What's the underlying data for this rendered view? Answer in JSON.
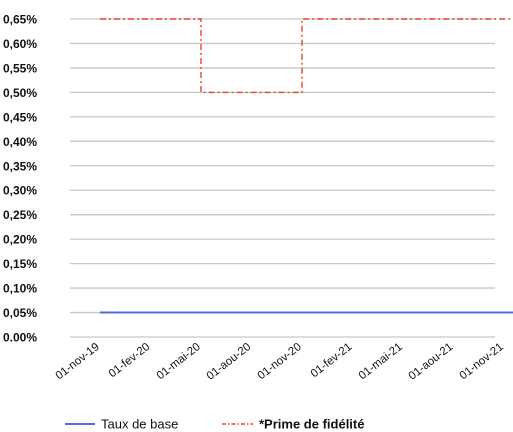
{
  "chart_data": {
    "type": "line",
    "title": "",
    "xlabel": "",
    "ylabel": "",
    "y_tick_labels": [
      "0.00%",
      "0,05%",
      "0,10%",
      "0,15%",
      "0,20%",
      "0,25%",
      "0,30%",
      "0,35%",
      "0,40%",
      "0,45%",
      "0,50%",
      "0,55%",
      "0,60%",
      "0,65%"
    ],
    "y_tick_values": [
      0.0,
      0.05,
      0.1,
      0.15,
      0.2,
      0.25,
      0.3,
      0.35,
      0.4,
      0.45,
      0.5,
      0.55,
      0.6,
      0.65
    ],
    "ylim": [
      0,
      0.65
    ],
    "x_tick_labels": [
      "01-nov-19",
      "01-fev-20",
      "01-mai-20",
      "01-aou-20",
      "01-nov-20",
      "01-fev-21",
      "01-mai-21",
      "01-aou-21",
      "01-nov-21"
    ],
    "grid": "horizontal",
    "legend_position": "bottom",
    "series": [
      {
        "name": "Taux de base",
        "style": "solid",
        "color": "#4a6fe0",
        "x": [
          "01-nov-19",
          "01-nov-21"
        ],
        "values": [
          0.05,
          0.05
        ]
      },
      {
        "name": "*Prime de fidélité",
        "style": "dashdot",
        "color": "#e8432a",
        "x": [
          "01-nov-19",
          "01-mai-20",
          "01-mai-20",
          "01-nov-20",
          "01-nov-20",
          "01-nov-21"
        ],
        "values": [
          0.65,
          0.65,
          0.5,
          0.5,
          0.65,
          0.65
        ]
      }
    ]
  }
}
